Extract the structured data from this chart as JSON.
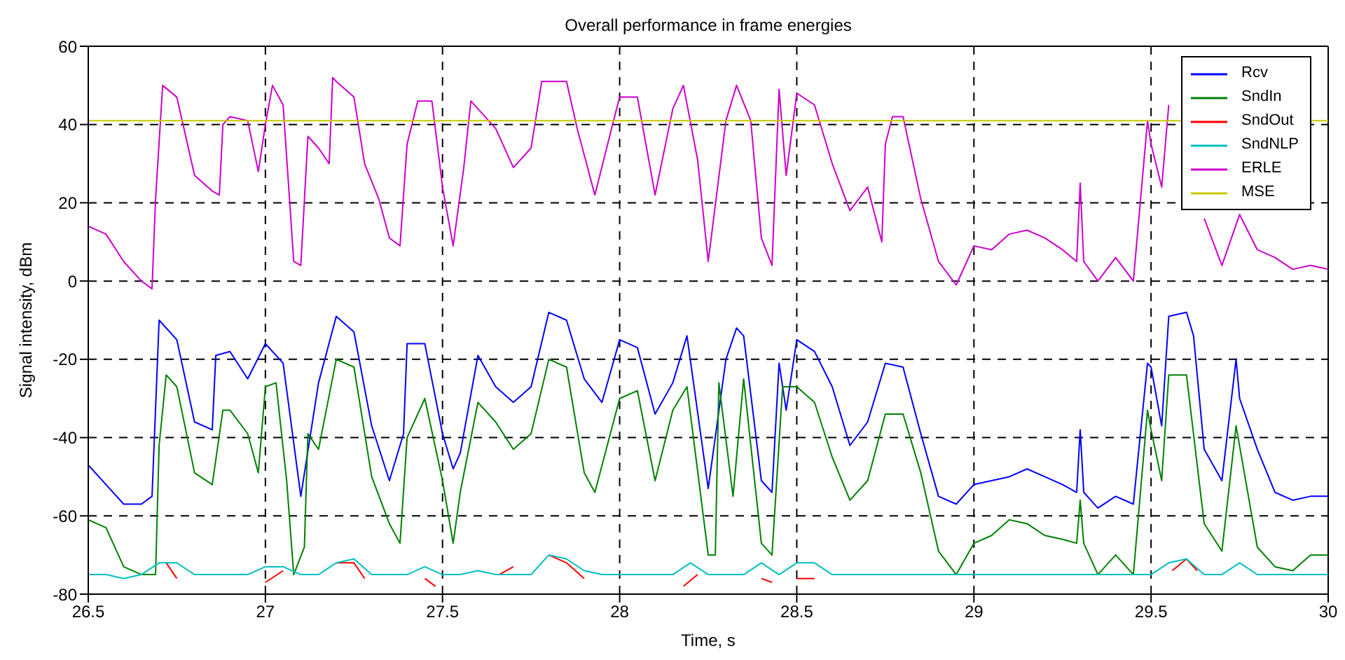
{
  "chart_data": {
    "type": "line",
    "title": "Overall performance in frame energies",
    "xlabel": "Time, s",
    "ylabel": "Signal intensity, dBm",
    "xlim": [
      26.5,
      30
    ],
    "xticks": [
      26.5,
      27,
      27.5,
      28,
      28.5,
      29,
      29.5,
      30
    ],
    "ylim": [
      -80,
      60
    ],
    "yticks": [
      -80,
      -60,
      -40,
      -20,
      0,
      20,
      40,
      60
    ],
    "grid": true,
    "legend": "top right",
    "marker": "none",
    "line_style": "solid",
    "series": [
      {
        "name": "Rcv",
        "color": "#0000ff",
        "x": [
          26.5,
          26.55,
          26.6,
          26.65,
          26.68,
          26.7,
          26.75,
          26.8,
          26.85,
          26.86,
          26.9,
          26.95,
          27.0,
          27.05,
          27.1,
          27.15,
          27.2,
          27.25,
          27.3,
          27.35,
          27.39,
          27.4,
          27.45,
          27.5,
          27.53,
          27.55,
          27.6,
          27.65,
          27.7,
          27.75,
          27.8,
          27.85,
          27.9,
          27.95,
          28.0,
          28.05,
          28.1,
          28.15,
          28.19,
          28.25,
          28.3,
          28.33,
          28.35,
          28.4,
          28.43,
          28.45,
          28.47,
          28.5,
          28.55,
          28.6,
          28.65,
          28.7,
          28.75,
          28.8,
          28.85,
          28.9,
          28.95,
          29.0,
          29.05,
          29.1,
          29.15,
          29.2,
          29.25,
          29.29,
          29.3,
          29.31,
          29.35,
          29.4,
          29.45,
          29.49,
          29.5,
          29.53,
          29.55,
          29.6,
          29.62,
          29.65,
          29.7,
          29.74,
          29.75,
          29.8,
          29.85,
          29.9,
          29.95,
          30.0
        ],
        "values": [
          -47,
          -52,
          -57,
          -57,
          -55,
          -10,
          -15,
          -36,
          -38,
          -19,
          -18,
          -25,
          -16,
          -21,
          -55,
          -26,
          -9,
          -13,
          -37,
          -51,
          -39,
          -16,
          -16,
          -39,
          -48,
          -44,
          -19,
          -27,
          -31,
          -27,
          -8,
          -10,
          -25,
          -31,
          -15,
          -17,
          -34,
          -26,
          -14,
          -53,
          -20,
          -12,
          -14,
          -51,
          -54,
          -21,
          -33,
          -15,
          -18,
          -27,
          -42,
          -36,
          -21,
          -22,
          -39,
          -55,
          -57,
          -52,
          -51,
          -50,
          -48,
          -50,
          -52,
          -54,
          -38,
          -54,
          -58,
          -55,
          -57,
          -21,
          -22,
          -37,
          -9,
          -8,
          -14,
          -43,
          -51,
          -20,
          -30,
          -43,
          -54,
          -56,
          -55,
          -55
        ]
      },
      {
        "name": "SndIn",
        "color": "#008000",
        "x": [
          26.5,
          26.55,
          26.6,
          26.65,
          26.69,
          26.7,
          26.72,
          26.75,
          26.8,
          26.85,
          26.88,
          26.9,
          26.95,
          26.98,
          27.0,
          27.03,
          27.06,
          27.08,
          27.11,
          27.12,
          27.15,
          27.2,
          27.25,
          27.3,
          27.35,
          27.38,
          27.4,
          27.45,
          27.5,
          27.53,
          27.55,
          27.6,
          27.65,
          27.7,
          27.75,
          27.8,
          27.85,
          27.9,
          27.93,
          28.0,
          28.05,
          28.1,
          28.15,
          28.19,
          28.25,
          28.27,
          28.28,
          28.32,
          28.35,
          28.4,
          28.43,
          28.46,
          28.5,
          28.55,
          28.6,
          28.65,
          28.7,
          28.75,
          28.8,
          28.85,
          28.9,
          28.95,
          29.0,
          29.05,
          29.1,
          29.15,
          29.2,
          29.25,
          29.29,
          29.3,
          29.31,
          29.35,
          29.4,
          29.45,
          29.49,
          29.5,
          29.53,
          29.55,
          29.6,
          29.65,
          29.7,
          29.74,
          29.8,
          29.85,
          29.9,
          29.95,
          30.0
        ],
        "values": [
          -61,
          -63,
          -73,
          -75,
          -75,
          -42,
          -24,
          -27,
          -49,
          -52,
          -33,
          -33,
          -39,
          -49,
          -27,
          -26,
          -51,
          -75,
          -68,
          -39,
          -43,
          -20,
          -22,
          -50,
          -62,
          -67,
          -40,
          -30,
          -51,
          -67,
          -54,
          -31,
          -36,
          -43,
          -39,
          -20,
          -22,
          -49,
          -54,
          -30,
          -28,
          -51,
          -33,
          -27,
          -70,
          -70,
          -26,
          -55,
          -25,
          -67,
          -70,
          -27,
          -27,
          -31,
          -45,
          -56,
          -51,
          -34,
          -34,
          -49,
          -69,
          -75,
          -67,
          -65,
          -61,
          -62,
          -65,
          -66,
          -67,
          -56,
          -67,
          -75,
          -70,
          -75,
          -33,
          -38,
          -51,
          -24,
          -24,
          -62,
          -69,
          -37,
          -68,
          -73,
          -74,
          -70,
          -70
        ]
      },
      {
        "name": "SndOut",
        "color": "#ff0000",
        "x": [
          26.72,
          26.75,
          26.78,
          27.0,
          27.05,
          27.08,
          27.2,
          27.25,
          27.28,
          27.3,
          27.45,
          27.48,
          27.5,
          27.66,
          27.7,
          27.73,
          27.8,
          27.85,
          27.9,
          27.92,
          28.18,
          28.22,
          28.25,
          28.4,
          28.43,
          28.46,
          28.5,
          28.55,
          28.58,
          29.56,
          29.6,
          29.63
        ],
        "values": [
          -72,
          -76,
          null,
          -77,
          -74,
          null,
          -72,
          -72,
          -76,
          null,
          -76,
          -78,
          null,
          -75,
          -73,
          null,
          -70,
          -72,
          -76,
          null,
          -78,
          -75,
          null,
          -76,
          -77,
          null,
          -76,
          -76,
          null,
          -74,
          -71,
          -74
        ]
      },
      {
        "name": "SndNLP",
        "color": "#00c0c0",
        "x": [
          26.5,
          26.55,
          26.6,
          26.65,
          26.7,
          26.75,
          26.8,
          26.85,
          26.9,
          26.95,
          27.0,
          27.05,
          27.1,
          27.15,
          27.2,
          27.25,
          27.3,
          27.35,
          27.4,
          27.45,
          27.5,
          27.55,
          27.6,
          27.65,
          27.7,
          27.75,
          27.8,
          27.85,
          27.9,
          27.95,
          28.0,
          28.05,
          28.1,
          28.15,
          28.2,
          28.25,
          28.3,
          28.35,
          28.4,
          28.45,
          28.5,
          28.55,
          28.6,
          28.65,
          28.7,
          28.75,
          28.8,
          28.85,
          28.9,
          28.95,
          29.0,
          29.05,
          29.1,
          29.15,
          29.2,
          29.25,
          29.3,
          29.35,
          29.4,
          29.45,
          29.5,
          29.55,
          29.6,
          29.65,
          29.7,
          29.75,
          29.8,
          29.85,
          29.9,
          29.95,
          30.0
        ],
        "values": [
          -75,
          -75,
          -76,
          -75,
          -72,
          -72,
          -75,
          -75,
          -75,
          -75,
          -73,
          -73,
          -75,
          -75,
          -72,
          -71,
          -75,
          -75,
          -75,
          -73,
          -75,
          -75,
          -74,
          -75,
          -75,
          -75,
          -70,
          -71,
          -74,
          -75,
          -75,
          -75,
          -75,
          -75,
          -72,
          -75,
          -75,
          -75,
          -72,
          -75,
          -72,
          -72,
          -75,
          -75,
          -75,
          -75,
          -75,
          -75,
          -75,
          -75,
          -75,
          -75,
          -75,
          -75,
          -75,
          -75,
          -75,
          -75,
          -75,
          -75,
          -75,
          -72,
          -71,
          -75,
          -75,
          -72,
          -75,
          -75,
          -75,
          -75,
          -75
        ]
      },
      {
        "name": "ERLE",
        "color": "#cc00cc",
        "x": [
          26.5,
          26.55,
          26.6,
          26.65,
          26.68,
          26.69,
          26.71,
          26.75,
          26.8,
          26.85,
          26.87,
          26.88,
          26.9,
          26.95,
          26.98,
          27.0,
          27.02,
          27.05,
          27.08,
          27.1,
          27.12,
          27.15,
          27.18,
          27.19,
          27.2,
          27.25,
          27.28,
          27.32,
          27.35,
          27.38,
          27.4,
          27.43,
          27.47,
          27.5,
          27.53,
          27.56,
          27.58,
          27.65,
          27.7,
          27.75,
          27.78,
          27.85,
          27.88,
          27.93,
          27.98,
          28.0,
          28.05,
          28.1,
          28.15,
          28.18,
          28.22,
          28.25,
          28.3,
          28.33,
          28.37,
          28.4,
          28.43,
          28.45,
          28.47,
          28.5,
          28.55,
          28.6,
          28.65,
          28.7,
          28.74,
          28.75,
          28.77,
          28.8,
          28.85,
          28.9,
          28.95,
          29.0,
          29.05,
          29.1,
          29.15,
          29.2,
          29.25,
          29.29,
          29.3,
          29.31,
          29.35,
          29.4,
          29.45,
          29.49,
          29.5,
          29.53,
          29.55,
          29.6,
          29.65,
          29.7,
          29.75,
          29.8,
          29.85,
          29.9,
          29.95,
          30.0
        ],
        "values": [
          14,
          12,
          5,
          0,
          -2,
          21,
          50,
          47,
          27,
          23,
          22,
          40,
          42,
          41,
          28,
          40,
          50,
          45,
          5,
          4,
          37,
          34,
          30,
          52,
          51,
          47,
          30,
          21,
          11,
          9,
          35,
          46,
          46,
          24,
          9,
          29,
          46,
          39,
          29,
          34,
          51,
          51,
          39,
          22,
          40,
          47,
          47,
          22,
          44,
          50,
          31,
          5,
          41,
          50,
          41,
          11,
          4,
          49,
          27,
          48,
          45,
          30,
          18,
          24,
          10,
          35,
          42,
          42,
          21,
          5,
          -1,
          9,
          8,
          12,
          13,
          11,
          8,
          5,
          25,
          5,
          0,
          6,
          0,
          41,
          35,
          24,
          45,
          null,
          16,
          4,
          17,
          8,
          6,
          3,
          4,
          3
        ]
      },
      {
        "name": "MSE",
        "color": "#c8c800",
        "x": [
          26.5,
          30
        ],
        "values": [
          41,
          41
        ]
      }
    ]
  }
}
